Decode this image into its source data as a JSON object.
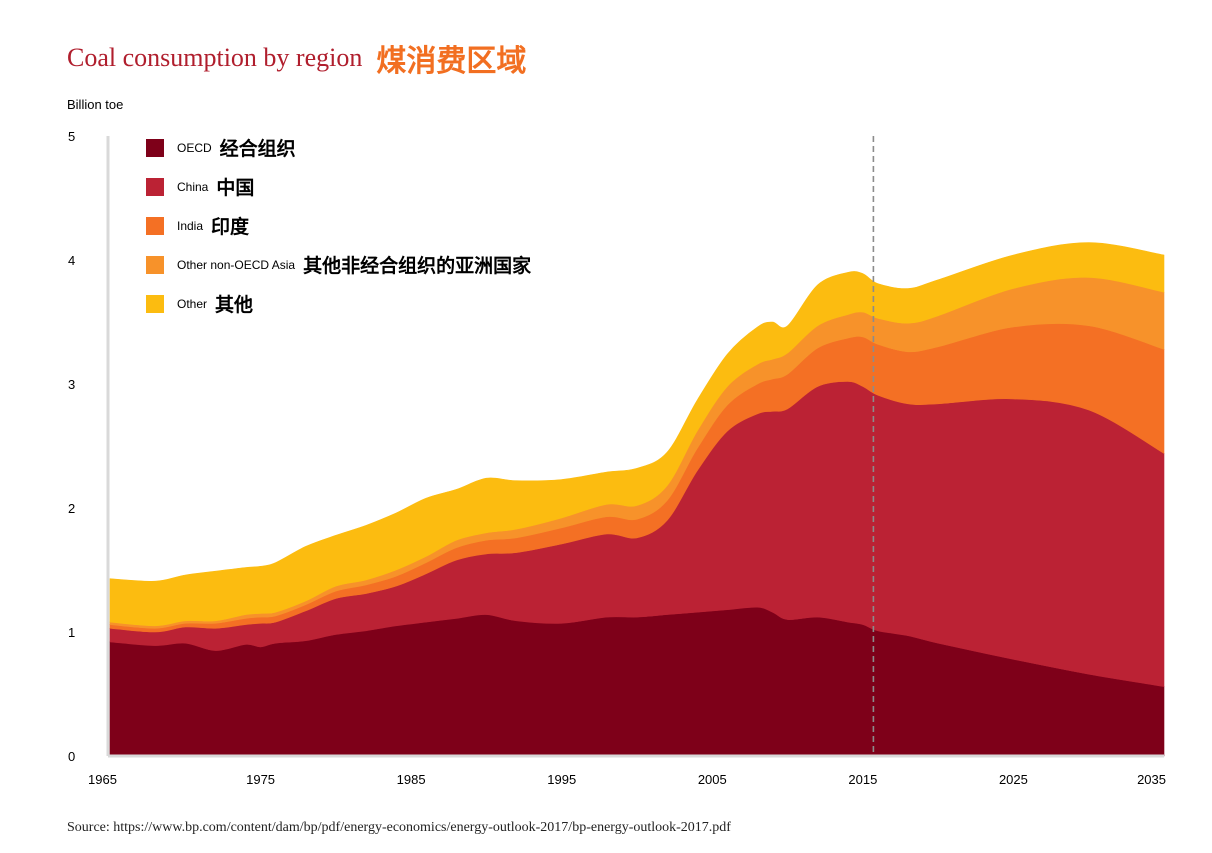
{
  "header": {
    "title_en": "Coal consumption by region",
    "title_zh": "煤消费区域"
  },
  "footer": {
    "source": "Source: https://www.bp.com/content/dam/bp/pdf/energy-economics/energy-outlook-2017/bp-energy-outlook-2017.pdf"
  },
  "colors": {
    "title_en": "#b01e2d",
    "title_zh": "#f26f21"
  },
  "chart_data": {
    "type": "area",
    "stacked": true,
    "ylabel": "Billion toe",
    "xlim": [
      1965,
      2035
    ],
    "ylim": [
      0,
      5
    ],
    "x_ticks": [
      "1965",
      "1975",
      "1985",
      "1995",
      "2005",
      "2015",
      "2025",
      "2035"
    ],
    "y_ticks": [
      "0",
      "1",
      "2",
      "3",
      "4",
      "5"
    ],
    "grid": false,
    "legend_position": "top-left",
    "forecast_divider_year": 2015.7,
    "x": [
      1965,
      1968,
      1970,
      1972,
      1974,
      1975,
      1976,
      1978,
      1980,
      1982,
      1984,
      1986,
      1988,
      1990,
      1992,
      1995,
      1998,
      2000,
      2002,
      2004,
      2006,
      2008,
      2009,
      2010,
      2012,
      2014,
      2015,
      2016,
      2018,
      2020,
      2025,
      2030,
      2035
    ],
    "series": [
      {
        "name": "OECD",
        "name_zh": "经合组织",
        "color": "#7e0019",
        "values": [
          0.92,
          0.89,
          0.91,
          0.85,
          0.9,
          0.88,
          0.91,
          0.93,
          0.98,
          1.01,
          1.05,
          1.08,
          1.11,
          1.14,
          1.09,
          1.07,
          1.12,
          1.12,
          1.14,
          1.16,
          1.18,
          1.2,
          1.16,
          1.1,
          1.12,
          1.08,
          1.06,
          1.01,
          0.97,
          0.91,
          0.78,
          0.66,
          0.56
        ]
      },
      {
        "name": "China",
        "name_zh": "中国",
        "color": "#bb2234",
        "values": [
          0.11,
          0.11,
          0.13,
          0.18,
          0.16,
          0.19,
          0.17,
          0.24,
          0.29,
          0.3,
          0.32,
          0.39,
          0.47,
          0.49,
          0.55,
          0.64,
          0.67,
          0.64,
          0.76,
          1.14,
          1.44,
          1.56,
          1.62,
          1.7,
          1.86,
          1.94,
          1.92,
          1.9,
          1.87,
          1.93,
          2.1,
          2.13,
          1.88
        ]
      },
      {
        "name": "India",
        "name_zh": "印度",
        "color": "#f47024",
        "values": [
          0.03,
          0.03,
          0.03,
          0.04,
          0.05,
          0.05,
          0.05,
          0.05,
          0.06,
          0.07,
          0.08,
          0.09,
          0.1,
          0.11,
          0.12,
          0.13,
          0.14,
          0.15,
          0.16,
          0.18,
          0.21,
          0.24,
          0.26,
          0.28,
          0.31,
          0.35,
          0.4,
          0.41,
          0.42,
          0.46,
          0.58,
          0.68,
          0.84
        ]
      },
      {
        "name": "Other non-OECD Asia",
        "name_zh": "其他非经合组织的亚洲国家",
        "color": "#f7922a",
        "values": [
          0.02,
          0.02,
          0.02,
          0.02,
          0.03,
          0.03,
          0.03,
          0.03,
          0.04,
          0.04,
          0.05,
          0.05,
          0.06,
          0.06,
          0.07,
          0.08,
          0.1,
          0.11,
          0.12,
          0.14,
          0.15,
          0.16,
          0.16,
          0.17,
          0.18,
          0.19,
          0.2,
          0.21,
          0.23,
          0.25,
          0.31,
          0.39,
          0.46
        ]
      },
      {
        "name": "Other",
        "name_zh": "其他",
        "color": "#fcbc10",
        "values": [
          0.35,
          0.36,
          0.37,
          0.4,
          0.38,
          0.38,
          0.4,
          0.44,
          0.41,
          0.44,
          0.46,
          0.47,
          0.41,
          0.44,
          0.39,
          0.31,
          0.26,
          0.3,
          0.27,
          0.25,
          0.26,
          0.3,
          0.3,
          0.22,
          0.33,
          0.34,
          0.31,
          0.28,
          0.28,
          0.29,
          0.27,
          0.28,
          0.3
        ]
      }
    ]
  }
}
